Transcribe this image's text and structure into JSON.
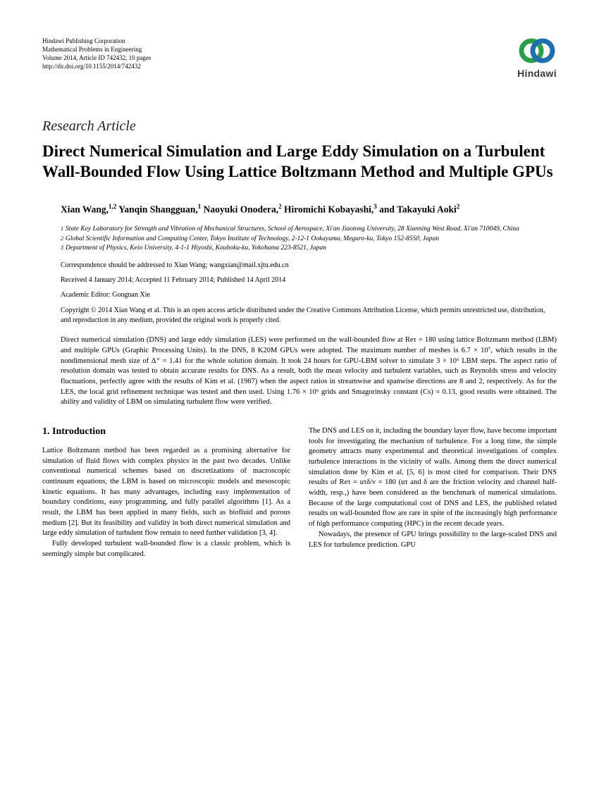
{
  "publisher": {
    "line1": "Hindawi Publishing Corporation",
    "line2": "Mathematical Problems in Engineering",
    "line3": "Volume 2014, Article ID 742432, 10 pages",
    "line4": "http://dx.doi.org/10.1155/2014/742432",
    "logo_name": "Hindawi",
    "logo_colors": {
      "ring1": "#2b9f47",
      "ring2": "#1f6fb0"
    }
  },
  "article_type": "Research Article",
  "title": "Direct Numerical Simulation and Large Eddy Simulation on a Turbulent Wall-Bounded Flow Using Lattice Boltzmann Method and Multiple GPUs",
  "authors_html": "Xian Wang,<sup>1,2</sup> Yanqin Shangguan,<sup>1</sup> Naoyuki Onodera,<sup>2</sup> Hiromichi Kobayashi,<sup>3</sup> and Takayuki Aoki<sup>2</sup>",
  "affiliations": [
    {
      "n": "1",
      "text": "State Key Laboratory for Strength and Vibration of Mechanical Structures, School of Aerospace, Xi'an Jiaotong University, 28 Xianning West Road, Xi'an 710049, China"
    },
    {
      "n": "2",
      "text": "Global Scientific Information and Computing Center, Tokyo Institute of Technology, 2-12-1 Ookayama, Meguro-ku, Tokyo 152-8550, Japan"
    },
    {
      "n": "3",
      "text": "Department of Physics, Keio University, 4-1-1 Hiyoshi, Kouhoku-ku, Yokohama 223-8521, Japan"
    }
  ],
  "correspondence": "Correspondence should be addressed to Xian Wang; wangxian@mail.xjtu.edu.cn",
  "dates": "Received 4 January 2014; Accepted 11 February 2014; Published 14 April 2014",
  "editor": "Academic Editor: Gongnan Xie",
  "copyright": "Copyright © 2014 Xian Wang et al. This is an open access article distributed under the Creative Commons Attribution License, which permits unrestricted use, distribution, and reproduction in any medium, provided the original work is properly cited.",
  "abstract": "Direct numerical simulation (DNS) and large eddy simulation (LES) were performed on the wall-bounded flow at Reτ = 180 using lattice Boltzmann method (LBM) and multiple GPUs (Graphic Processing Units). In the DNS, 8 K20M GPUs were adopted. The maximum number of meshes is 6.7 × 10⁷, which results in the nondimensional mesh size of Δ⁺ = 1.41 for the whole solution domain. It took 24 hours for GPU-LBM solver to simulate 3 × 10⁶ LBM steps. The aspect ratio of resolution domain was tested to obtain accurate results for DNS. As a result, both the mean velocity and turbulent variables, such as Reynolds stress and velocity fluctuations, perfectly agree with the results of Kim et al. (1987) when the aspect ratios in streamwise and spanwise directions are 8 and 2, respectively. As for the LES, the local grid refinement technique was tested and then used. Using 1.76 × 10⁶ grids and Smagorinsky constant (Cs) = 0.13, good results were obtained. The ability and validity of LBM on simulating turbulent flow were verified.",
  "section1_heading": "1. Introduction",
  "col1_p1": "Lattice Boltzmann method has been regarded as a promising alternative for simulation of fluid flows with complex physics in the past two decades. Unlike conventional numerical schemes based on discretizations of macroscopic continuum equations, the LBM is based on microscopic models and mesoscopic kinetic equations. It has many advantages, including easy implementation of boundary conditions, easy programming, and fully parallel algorithms [1]. As a result, the LBM has been applied in many fields, such as biofluid and porous medium [2]. But its feasibility and validity in both direct numerical simulation and large eddy simulation of turbulent flow remain to need further validation [3, 4].",
  "col1_p2": "Fully developed turbulent wall-bounded flow is a classic problem, which is seemingly simple but complicated.",
  "col2_p1": "The DNS and LES on it, including the boundary layer flow, have become important tools for investigating the mechanism of turbulence. For a long time, the simple geometry attracts many experimental and theoretical investigations of complex turbulence interactions in the vicinity of walls. Among them the direct numerical simulation done by Kim et al. [5, 6] is most cited for comparison. Their DNS results of Reτ = uτδ/ν = 180 (uτ and δ are the friction velocity and channel half-width, resp.,) have been considered as the benchmark of numerical simulations. Because of the large computational cost of DNS and LES, the published related results on wall-bounded flow are rare in spite of the increasingly high performance of high performance computing (HPC) in the recent decade years.",
  "col2_p2": "Nowadays, the presence of GPU brings possibility to the large-scaled DNS and LES for turbulence prediction. GPU",
  "fonts": {
    "body_pt": 10.5,
    "title_pt": 23,
    "header_pt": 9
  },
  "colors": {
    "text": "#000000",
    "bg": "#ffffff"
  }
}
